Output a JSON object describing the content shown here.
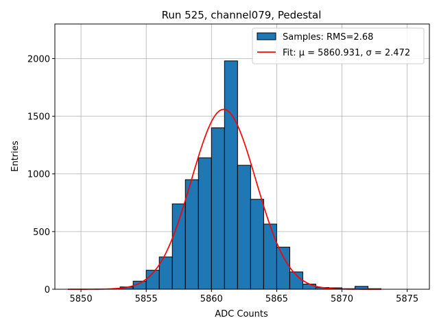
{
  "chart_data": {
    "type": "bar",
    "title": "Run 525, channel079, Pedestal",
    "xlabel": "ADC Counts",
    "ylabel": "Entries",
    "xlim": [
      5848.0,
      5876.7
    ],
    "ylim": [
      0,
      2300
    ],
    "xticks": [
      5850,
      5855,
      5860,
      5865,
      5870,
      5875
    ],
    "yticks": [
      0,
      500,
      1000,
      1500,
      2000
    ],
    "grid": true,
    "legend_position": "top-right",
    "bar_color": "#1f77b4",
    "fit_color": "#ff0000",
    "histogram": {
      "name": "Samples: RMS=2.68",
      "bin_width": 1,
      "bins": [
        {
          "x0": 5853,
          "x1": 5854,
          "count": 20
        },
        {
          "x0": 5854,
          "x1": 5855,
          "count": 70
        },
        {
          "x0": 5855,
          "x1": 5856,
          "count": 165
        },
        {
          "x0": 5856,
          "x1": 5857,
          "count": 280
        },
        {
          "x0": 5857,
          "x1": 5858,
          "count": 740
        },
        {
          "x0": 5858,
          "x1": 5859,
          "count": 950
        },
        {
          "x0": 5859,
          "x1": 5860,
          "count": 1140
        },
        {
          "x0": 5860,
          "x1": 5861,
          "count": 1400
        },
        {
          "x0": 5861,
          "x1": 5862,
          "count": 1980
        },
        {
          "x0": 5862,
          "x1": 5863,
          "count": 1075
        },
        {
          "x0": 5863,
          "x1": 5864,
          "count": 780
        },
        {
          "x0": 5864,
          "x1": 5865,
          "count": 565
        },
        {
          "x0": 5865,
          "x1": 5866,
          "count": 365
        },
        {
          "x0": 5866,
          "x1": 5867,
          "count": 150
        },
        {
          "x0": 5867,
          "x1": 5868,
          "count": 45
        },
        {
          "x0": 5868,
          "x1": 5869,
          "count": 15
        },
        {
          "x0": 5869,
          "x1": 5870,
          "count": 12
        },
        {
          "x0": 5870,
          "x1": 5871,
          "count": 5
        },
        {
          "x0": 5871,
          "x1": 5872,
          "count": 25
        },
        {
          "x0": 5872,
          "x1": 5873,
          "count": 5
        }
      ]
    },
    "fit": {
      "name": "Fit: μ = 5860.931, σ = 2.472",
      "type": "gaussian",
      "mu": 5860.931,
      "sigma": 2.472,
      "amplitude": 1560,
      "x_range": [
        5849.0,
        5873.0
      ]
    }
  }
}
